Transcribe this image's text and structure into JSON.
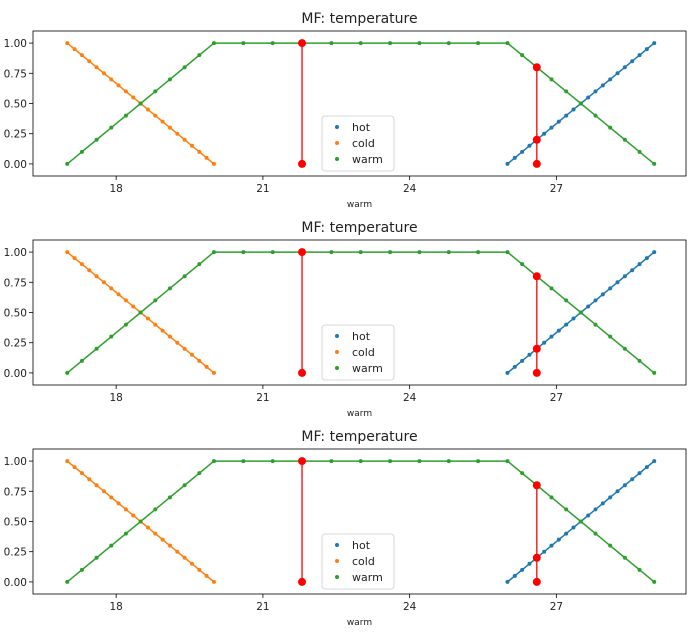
{
  "chart_data": [
    {
      "type": "line",
      "title": "MF: temperature",
      "xlabel": "warm",
      "ylabel": "",
      "xlim": [
        16.3,
        29.65
      ],
      "ylim": [
        -0.1,
        1.1
      ],
      "xticks": [
        18,
        21,
        24,
        27
      ],
      "yticks": [
        0,
        0.25,
        0.5,
        0.75,
        1.0
      ],
      "ytick_labels": [
        "0.00",
        "0.25",
        "0.50",
        "0.75",
        "1.00"
      ],
      "legend_position": "lower-center",
      "series": [
        {
          "name": "hot",
          "color": "#1f77b4",
          "x": [
            26.0,
            26.15,
            26.3,
            26.45,
            26.6,
            26.75,
            26.9,
            27.05,
            27.2,
            27.35,
            27.5,
            27.65,
            27.8,
            27.95,
            28.1,
            28.25,
            28.4,
            28.55,
            28.7,
            28.85,
            29.0
          ],
          "y": [
            0.0,
            0.05,
            0.1,
            0.15,
            0.2,
            0.25,
            0.3,
            0.35,
            0.4,
            0.45,
            0.5,
            0.55,
            0.6,
            0.65,
            0.7,
            0.75,
            0.8,
            0.85,
            0.9,
            0.95,
            1.0
          ]
        },
        {
          "name": "cold",
          "color": "#ff7f0e",
          "x": [
            17.0,
            17.15,
            17.3,
            17.45,
            17.6,
            17.75,
            17.9,
            18.05,
            18.2,
            18.35,
            18.5,
            18.65,
            18.8,
            18.95,
            19.1,
            19.25,
            19.4,
            19.55,
            19.7,
            19.85,
            20.0
          ],
          "y": [
            1.0,
            0.95,
            0.9,
            0.85,
            0.8,
            0.75,
            0.7,
            0.65,
            0.6,
            0.55,
            0.5,
            0.45,
            0.4,
            0.35,
            0.3,
            0.25,
            0.2,
            0.15,
            0.1,
            0.05,
            0.0
          ]
        },
        {
          "name": "warm",
          "color": "#2ca02c",
          "x": [
            17.0,
            17.3,
            17.6,
            17.9,
            18.2,
            18.5,
            18.8,
            19.1,
            19.4,
            19.7,
            20.0,
            20.6,
            21.2,
            21.8,
            22.4,
            23.0,
            23.6,
            24.2,
            24.8,
            25.4,
            26.0,
            26.3,
            26.6,
            26.9,
            27.2,
            27.5,
            27.8,
            28.1,
            28.4,
            28.7,
            29.0
          ],
          "y": [
            0.0,
            0.1,
            0.2,
            0.3,
            0.4,
            0.5,
            0.6,
            0.7,
            0.8,
            0.9,
            1.0,
            1.0,
            1.0,
            1.0,
            1.0,
            1.0,
            1.0,
            1.0,
            1.0,
            1.0,
            1.0,
            0.9,
            0.8,
            0.7,
            0.6,
            0.5,
            0.4,
            0.3,
            0.2,
            0.1,
            0.0
          ]
        }
      ],
      "markers": [
        {
          "x": 21.8,
          "y0": 0.0,
          "y1": 1.0,
          "color": "#ff0000"
        },
        {
          "x": 26.6,
          "y0": 0.0,
          "y1": 0.8,
          "color": "#ff0000",
          "mid": 0.2
        }
      ]
    },
    {
      "type": "line",
      "title": "MF: temperature",
      "xlabel": "warm",
      "ylabel": "",
      "xlim": [
        16.3,
        29.65
      ],
      "ylim": [
        -0.1,
        1.1
      ],
      "xticks": [
        18,
        21,
        24,
        27
      ],
      "yticks": [
        0,
        0.25,
        0.5,
        0.75,
        1.0
      ],
      "ytick_labels": [
        "0.00",
        "0.25",
        "0.50",
        "0.75",
        "1.00"
      ],
      "legend_position": "lower-center",
      "series": [
        {
          "name": "hot",
          "color": "#1f77b4",
          "x": [
            26.0,
            26.15,
            26.3,
            26.45,
            26.6,
            26.75,
            26.9,
            27.05,
            27.2,
            27.35,
            27.5,
            27.65,
            27.8,
            27.95,
            28.1,
            28.25,
            28.4,
            28.55,
            28.7,
            28.85,
            29.0
          ],
          "y": [
            0.0,
            0.05,
            0.1,
            0.15,
            0.2,
            0.25,
            0.3,
            0.35,
            0.4,
            0.45,
            0.5,
            0.55,
            0.6,
            0.65,
            0.7,
            0.75,
            0.8,
            0.85,
            0.9,
            0.95,
            1.0
          ]
        },
        {
          "name": "cold",
          "color": "#ff7f0e",
          "x": [
            17.0,
            17.15,
            17.3,
            17.45,
            17.6,
            17.75,
            17.9,
            18.05,
            18.2,
            18.35,
            18.5,
            18.65,
            18.8,
            18.95,
            19.1,
            19.25,
            19.4,
            19.55,
            19.7,
            19.85,
            20.0
          ],
          "y": [
            1.0,
            0.95,
            0.9,
            0.85,
            0.8,
            0.75,
            0.7,
            0.65,
            0.6,
            0.55,
            0.5,
            0.45,
            0.4,
            0.35,
            0.3,
            0.25,
            0.2,
            0.15,
            0.1,
            0.05,
            0.0
          ]
        },
        {
          "name": "warm",
          "color": "#2ca02c",
          "x": [
            17.0,
            17.3,
            17.6,
            17.9,
            18.2,
            18.5,
            18.8,
            19.1,
            19.4,
            19.7,
            20.0,
            20.6,
            21.2,
            21.8,
            22.4,
            23.0,
            23.6,
            24.2,
            24.8,
            25.4,
            26.0,
            26.3,
            26.6,
            26.9,
            27.2,
            27.5,
            27.8,
            28.1,
            28.4,
            28.7,
            29.0
          ],
          "y": [
            0.0,
            0.1,
            0.2,
            0.3,
            0.4,
            0.5,
            0.6,
            0.7,
            0.8,
            0.9,
            1.0,
            1.0,
            1.0,
            1.0,
            1.0,
            1.0,
            1.0,
            1.0,
            1.0,
            1.0,
            1.0,
            0.9,
            0.8,
            0.7,
            0.6,
            0.5,
            0.4,
            0.3,
            0.2,
            0.1,
            0.0
          ]
        }
      ],
      "markers": [
        {
          "x": 21.8,
          "y0": 0.0,
          "y1": 1.0,
          "color": "#ff0000"
        },
        {
          "x": 26.6,
          "y0": 0.0,
          "y1": 0.8,
          "color": "#ff0000",
          "mid": 0.2
        }
      ]
    },
    {
      "type": "line",
      "title": "MF: temperature",
      "xlabel": "warm",
      "ylabel": "",
      "xlim": [
        16.3,
        29.65
      ],
      "ylim": [
        -0.1,
        1.1
      ],
      "xticks": [
        18,
        21,
        24,
        27
      ],
      "yticks": [
        0,
        0.25,
        0.5,
        0.75,
        1.0
      ],
      "ytick_labels": [
        "0.00",
        "0.25",
        "0.50",
        "0.75",
        "1.00"
      ],
      "legend_position": "lower-center",
      "series": [
        {
          "name": "hot",
          "color": "#1f77b4",
          "x": [
            26.0,
            26.15,
            26.3,
            26.45,
            26.6,
            26.75,
            26.9,
            27.05,
            27.2,
            27.35,
            27.5,
            27.65,
            27.8,
            27.95,
            28.1,
            28.25,
            28.4,
            28.55,
            28.7,
            28.85,
            29.0
          ],
          "y": [
            0.0,
            0.05,
            0.1,
            0.15,
            0.2,
            0.25,
            0.3,
            0.35,
            0.4,
            0.45,
            0.5,
            0.55,
            0.6,
            0.65,
            0.7,
            0.75,
            0.8,
            0.85,
            0.9,
            0.95,
            1.0
          ]
        },
        {
          "name": "cold",
          "color": "#ff7f0e",
          "x": [
            17.0,
            17.15,
            17.3,
            17.45,
            17.6,
            17.75,
            17.9,
            18.05,
            18.2,
            18.35,
            18.5,
            18.65,
            18.8,
            18.95,
            19.1,
            19.25,
            19.4,
            19.55,
            19.7,
            19.85,
            20.0
          ],
          "y": [
            1.0,
            0.95,
            0.9,
            0.85,
            0.8,
            0.75,
            0.7,
            0.65,
            0.6,
            0.55,
            0.5,
            0.45,
            0.4,
            0.35,
            0.3,
            0.25,
            0.2,
            0.15,
            0.1,
            0.05,
            0.0
          ]
        },
        {
          "name": "warm",
          "color": "#2ca02c",
          "x": [
            17.0,
            17.3,
            17.6,
            17.9,
            18.2,
            18.5,
            18.8,
            19.1,
            19.4,
            19.7,
            20.0,
            20.6,
            21.2,
            21.8,
            22.4,
            23.0,
            23.6,
            24.2,
            24.8,
            25.4,
            26.0,
            26.3,
            26.6,
            26.9,
            27.2,
            27.5,
            27.8,
            28.1,
            28.4,
            28.7,
            29.0
          ],
          "y": [
            0.0,
            0.1,
            0.2,
            0.3,
            0.4,
            0.5,
            0.6,
            0.7,
            0.8,
            0.9,
            1.0,
            1.0,
            1.0,
            1.0,
            1.0,
            1.0,
            1.0,
            1.0,
            1.0,
            1.0,
            1.0,
            0.9,
            0.8,
            0.7,
            0.6,
            0.5,
            0.4,
            0.3,
            0.2,
            0.1,
            0.0
          ]
        }
      ],
      "markers": [
        {
          "x": 21.8,
          "y0": 0.0,
          "y1": 1.0,
          "color": "#ff0000"
        },
        {
          "x": 26.6,
          "y0": 0.0,
          "y1": 0.8,
          "color": "#ff0000",
          "mid": 0.2
        }
      ]
    }
  ]
}
